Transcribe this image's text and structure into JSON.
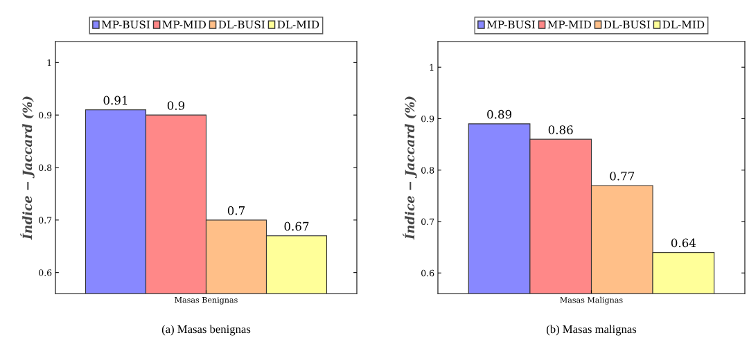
{
  "chart_data": [
    {
      "type": "bar",
      "categories": [
        "Masas Benignas"
      ],
      "ylabel": "Índice − Jaccard (%)",
      "ylim": [
        0.56,
        1.04
      ],
      "yticks": [
        0.6,
        0.7,
        0.8,
        0.9,
        1
      ],
      "legend": "top",
      "data_labels": true,
      "grid": false,
      "annotations": [
        "(a) Masas benignas"
      ],
      "series": [
        {
          "name": "MP-BUSI",
          "color": "#8888ff",
          "values": [
            0.91
          ]
        },
        {
          "name": "MP-MID",
          "color": "#ff8888",
          "values": [
            0.9
          ]
        },
        {
          "name": "DL-BUSI",
          "color": "#ffbf88",
          "values": [
            0.7
          ]
        },
        {
          "name": "DL-MID",
          "color": "#ffff99",
          "values": [
            0.67
          ]
        }
      ]
    },
    {
      "type": "bar",
      "categories": [
        "Masas Malignas"
      ],
      "ylabel": "Índice − Jaccard (%)",
      "ylim": [
        0.56,
        1.05
      ],
      "yticks": [
        0.6,
        0.7,
        0.8,
        0.9,
        1
      ],
      "legend": "top",
      "data_labels": true,
      "grid": false,
      "annotations": [
        "(b) Masas malignas"
      ],
      "series": [
        {
          "name": "MP-BUSI",
          "color": "#8888ff",
          "values": [
            0.89
          ]
        },
        {
          "name": "MP-MID",
          "color": "#ff8888",
          "values": [
            0.86
          ]
        },
        {
          "name": "DL-BUSI",
          "color": "#ffbf88",
          "values": [
            0.77
          ]
        },
        {
          "name": "DL-MID",
          "color": "#ffff99",
          "values": [
            0.64
          ]
        }
      ]
    }
  ]
}
